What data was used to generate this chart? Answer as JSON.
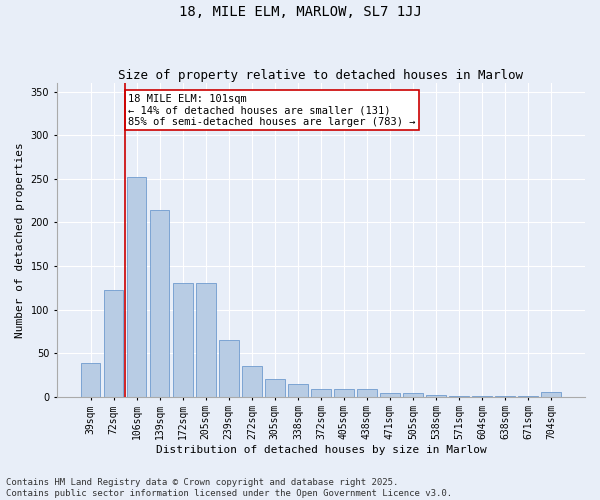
{
  "title1": "18, MILE ELM, MARLOW, SL7 1JJ",
  "title2": "Size of property relative to detached houses in Marlow",
  "xlabel": "Distribution of detached houses by size in Marlow",
  "ylabel": "Number of detached properties",
  "categories": [
    "39sqm",
    "72sqm",
    "106sqm",
    "139sqm",
    "172sqm",
    "205sqm",
    "239sqm",
    "272sqm",
    "305sqm",
    "338sqm",
    "372sqm",
    "405sqm",
    "438sqm",
    "471sqm",
    "505sqm",
    "538sqm",
    "571sqm",
    "604sqm",
    "638sqm",
    "671sqm",
    "704sqm"
  ],
  "values": [
    39,
    122,
    252,
    214,
    130,
    130,
    65,
    35,
    20,
    14,
    9,
    9,
    9,
    4,
    4,
    2,
    1,
    1,
    1,
    1,
    5
  ],
  "bar_color": "#b8cce4",
  "bar_edge_color": "#5b8dc8",
  "vline_x": 1.5,
  "vline_color": "#cc0000",
  "annotation_text": "18 MILE ELM: 101sqm\n← 14% of detached houses are smaller (131)\n85% of semi-detached houses are larger (783) →",
  "annotation_box_color": "#ffffff",
  "annotation_box_edge": "#cc0000",
  "ylim": [
    0,
    360
  ],
  "yticks": [
    0,
    50,
    100,
    150,
    200,
    250,
    300,
    350
  ],
  "footer": "Contains HM Land Registry data © Crown copyright and database right 2025.\nContains public sector information licensed under the Open Government Licence v3.0.",
  "background_color": "#e8eef8",
  "plot_background": "#e8eef8",
  "title_fontsize": 10,
  "subtitle_fontsize": 9,
  "axis_label_fontsize": 8,
  "tick_fontsize": 7,
  "footer_fontsize": 6.5,
  "annotation_fontsize": 7.5
}
